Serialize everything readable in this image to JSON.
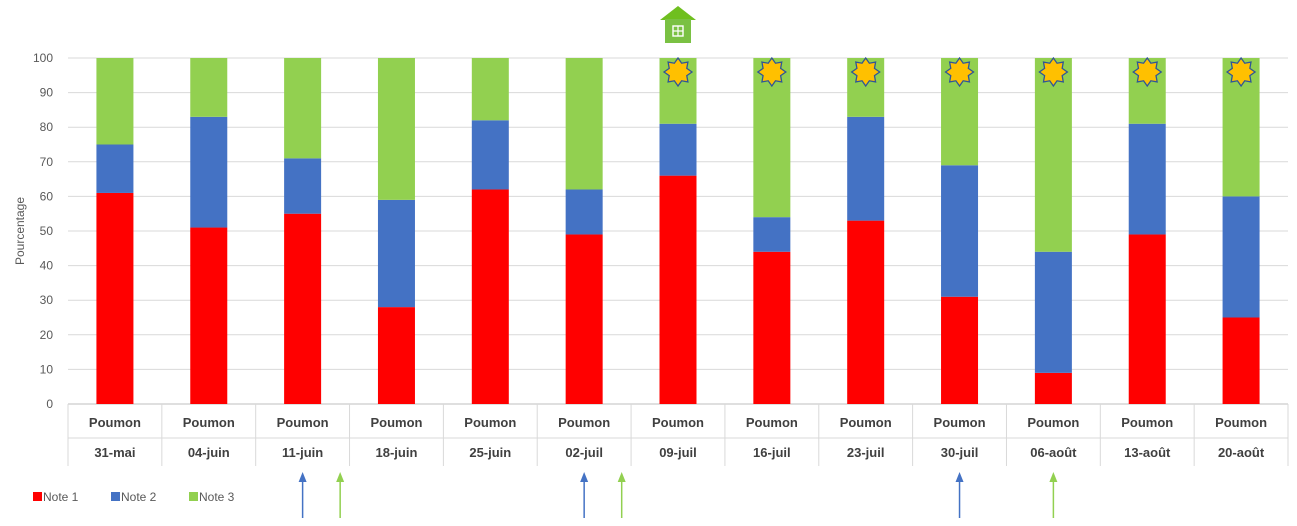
{
  "chart_data": {
    "type": "bar",
    "stacked": true,
    "ylabel": "Pourcentage",
    "ylim": [
      0,
      100
    ],
    "yticks": [
      0,
      10,
      20,
      30,
      40,
      50,
      60,
      70,
      80,
      90,
      100
    ],
    "grid": true,
    "categories": [
      {
        "top": "Poumon",
        "bottom": "31-mai"
      },
      {
        "top": "Poumon",
        "bottom": "04-juin"
      },
      {
        "top": "Poumon",
        "bottom": "11-juin"
      },
      {
        "top": "Poumon",
        "bottom": "18-juin"
      },
      {
        "top": "Poumon",
        "bottom": "25-juin"
      },
      {
        "top": "Poumon",
        "bottom": "02-juil"
      },
      {
        "top": "Poumon",
        "bottom": "09-juil"
      },
      {
        "top": "Poumon",
        "bottom": "16-juil"
      },
      {
        "top": "Poumon",
        "bottom": "23-juil"
      },
      {
        "top": "Poumon",
        "bottom": "30-juil"
      },
      {
        "top": "Poumon",
        "bottom": "06-août"
      },
      {
        "top": "Poumon",
        "bottom": "13-août"
      },
      {
        "top": "Poumon",
        "bottom": "20-août"
      }
    ],
    "series": [
      {
        "name": "Note 1",
        "color": "#ff0000",
        "values": [
          61,
          51,
          55,
          28,
          62,
          49,
          66,
          44,
          53,
          31,
          9,
          49,
          25
        ]
      },
      {
        "name": "Note 2",
        "color": "#4472c4",
        "values": [
          14,
          32,
          16,
          31,
          20,
          13,
          15,
          10,
          30,
          38,
          35,
          32,
          35
        ]
      },
      {
        "name": "Note 3",
        "color": "#92d050",
        "values": [
          25,
          17,
          29,
          41,
          18,
          38,
          19,
          46,
          17,
          31,
          56,
          19,
          40
        ]
      }
    ],
    "legend_position": "bottom-left",
    "annotations": {
      "house_icon_index": 6,
      "star_icon_between_indices": [
        6.5,
        7.5,
        8.5,
        9.5,
        10.5,
        11.5,
        12.5
      ],
      "arrows": [
        {
          "pos": 2.5,
          "color": "#4472c4"
        },
        {
          "pos": 2.9,
          "color": "#92d050"
        },
        {
          "pos": 5.5,
          "color": "#4472c4"
        },
        {
          "pos": 5.9,
          "color": "#92d050"
        },
        {
          "pos": 9.5,
          "color": "#4472c4"
        },
        {
          "pos": 10.5,
          "color": "#92d050"
        }
      ]
    }
  }
}
